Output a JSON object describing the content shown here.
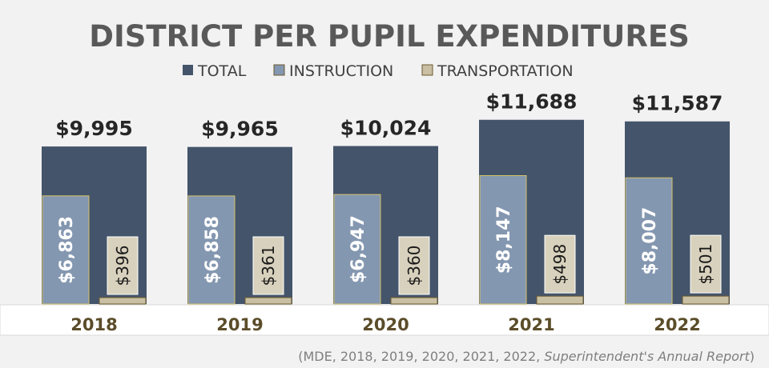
{
  "colors": {
    "total": "#44546a",
    "instruction": "#8497b0",
    "transportation": "#c9bfa2",
    "instruction_border": "#d4c26a",
    "transportation_border": "#6b5a2e",
    "background": "#f2f2f2"
  },
  "source": {
    "prefix": "(MDE, 2018, 2019, 2020, 2021, 2022, ",
    "italic": "Superintendent's Annual Report",
    "suffix": ")"
  },
  "chart_data": {
    "type": "bar",
    "title": "DISTRICT PER PUPIL EXPENDITURES",
    "categories": [
      "2018",
      "2019",
      "2020",
      "2021",
      "2022"
    ],
    "series": [
      {
        "name": "TOTAL",
        "values": [
          9995,
          9965,
          10024,
          11688,
          11587
        ],
        "labels": [
          "$9,995",
          "$9,965",
          "$10,024",
          "$11,688",
          "$11,587"
        ]
      },
      {
        "name": "INSTRUCTION",
        "values": [
          6863,
          6858,
          6947,
          8147,
          8007
        ],
        "labels": [
          "$6,863",
          "$6,858",
          "$6,947",
          "$8,147",
          "$8,007"
        ]
      },
      {
        "name": "TRANSPORTATION",
        "values": [
          396,
          361,
          360,
          498,
          501
        ],
        "labels": [
          "$396",
          "$361",
          "$360",
          "$498",
          "$501"
        ]
      }
    ],
    "legend_position": "top",
    "grid": false
  }
}
